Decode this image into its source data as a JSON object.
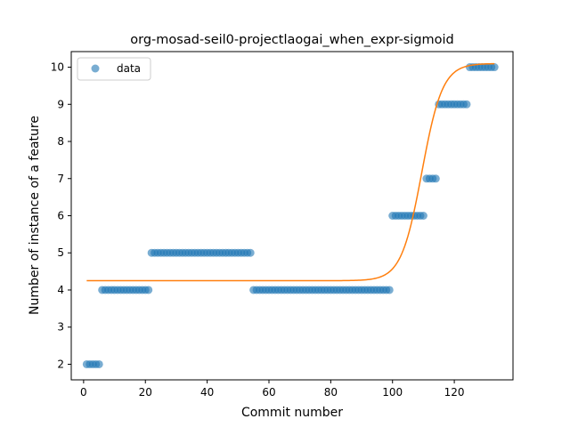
{
  "chart_data": {
    "type": "scatter",
    "title": "org-mosad-seil0-projectlaogai_when_expr-sigmoid",
    "xlabel": "Commit number",
    "ylabel": "Number of instance of a feature",
    "xlim": [
      -4,
      139
    ],
    "ylim": [
      1.58,
      10.42
    ],
    "xticks": [
      0,
      20,
      40,
      60,
      80,
      100,
      120
    ],
    "yticks": [
      2,
      3,
      4,
      5,
      6,
      7,
      8,
      9,
      10
    ],
    "grid": false,
    "legend": {
      "position": "top-left",
      "entries": [
        "data"
      ]
    },
    "colors": {
      "data": "#1f77b4",
      "fit": "#ff7f0e"
    },
    "segments": [
      {
        "x_start": 1,
        "x_end": 5,
        "y": 2
      },
      {
        "x_start": 6,
        "x_end": 21,
        "y": 4
      },
      {
        "x_start": 22,
        "x_end": 54,
        "y": 5
      },
      {
        "x_start": 55,
        "x_end": 99,
        "y": 4
      },
      {
        "x_start": 100,
        "x_end": 110,
        "y": 6
      },
      {
        "x_start": 111,
        "x_end": 114,
        "y": 7
      },
      {
        "x_start": 115,
        "x_end": 124,
        "y": 9
      },
      {
        "x_start": 125,
        "x_end": 133,
        "y": 10
      }
    ],
    "series": [
      {
        "name": "data",
        "kind": "scatter"
      },
      {
        "kind": "line",
        "x_range": [
          1,
          133
        ],
        "sigmoid": {
          "lower": 4.25,
          "upper": 10.1,
          "midpoint": 109.5,
          "slope": 0.3
        }
      }
    ]
  }
}
